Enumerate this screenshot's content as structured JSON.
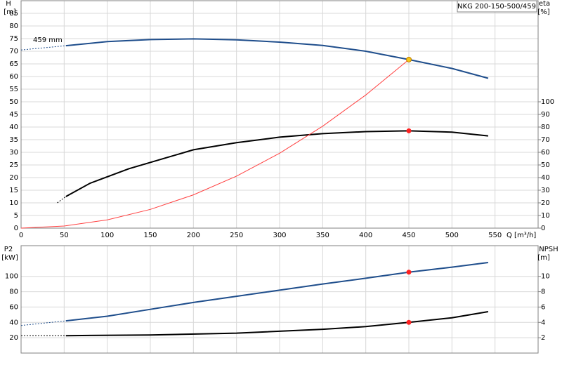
{
  "chart_data": [
    {
      "type": "line",
      "title": "NKG 200-150-500/459",
      "xlabel": "Q [m³/h]",
      "ylabel": [
        "H",
        "[m]"
      ],
      "y2label": [
        "eta",
        "[%]"
      ],
      "annotations": [
        "459 mm"
      ],
      "xlim": [
        0,
        600
      ],
      "xticks": [
        0,
        50,
        100,
        150,
        200,
        250,
        300,
        350,
        400,
        450,
        500,
        550
      ],
      "ylim": [
        0,
        90
      ],
      "yticks": [
        0,
        5,
        10,
        15,
        20,
        25,
        30,
        35,
        40,
        45,
        50,
        55,
        60,
        65,
        70,
        75,
        80,
        85
      ],
      "y2lim": [
        0,
        180
      ],
      "y2ticks": [
        0,
        10,
        20,
        30,
        40,
        50,
        60,
        70,
        80,
        90,
        100
      ],
      "grid": true,
      "series": [
        {
          "color": "#1f4e8c",
          "dashed": true,
          "x": [
            0,
            52
          ],
          "values": [
            70.5,
            72.2
          ]
        },
        {
          "color": "#1f4e8c",
          "x": [
            52,
            100,
            150,
            200,
            250,
            300,
            350,
            400,
            450,
            500,
            542
          ],
          "values": [
            72.2,
            73.8,
            74.6,
            74.9,
            74.5,
            73.6,
            72.3,
            70.0,
            66.7,
            63.2,
            59.3
          ]
        },
        {
          "color": "#000000",
          "dashed": true,
          "axis": "y2",
          "x": [
            42,
            52
          ],
          "values": [
            20,
            25
          ]
        },
        {
          "color": "#000000",
          "axis": "y2",
          "x": [
            52,
            80,
            125,
            170,
            200,
            250,
            300,
            350,
            400,
            450,
            500,
            542
          ],
          "values": [
            25,
            35.5,
            47,
            56,
            62,
            67.6,
            72,
            74.8,
            76.4,
            77,
            76,
            73
          ]
        },
        {
          "color": "#ff4040",
          "thin": true,
          "x": [
            0,
            50,
            100,
            150,
            200,
            250,
            300,
            350,
            400,
            450
          ],
          "values": [
            0,
            0.82,
            3.29,
            7.41,
            13.17,
            20.58,
            29.64,
            40.34,
            52.69,
            66.7
          ]
        }
      ],
      "markers": [
        {
          "x": 450,
          "y": 66.7,
          "color": "#f5c518"
        },
        {
          "x": 450,
          "y": 77,
          "axis": "y2",
          "color": "#ff2020"
        }
      ]
    },
    {
      "type": "line",
      "ylabel": [
        "P2",
        "[kW]"
      ],
      "y2label": [
        "NPSH",
        "[m]"
      ],
      "xlim": [
        0,
        600
      ],
      "xticks": [
        0,
        50,
        100,
        150,
        200,
        250,
        300,
        350,
        400,
        450,
        500,
        550
      ],
      "ylim": [
        0,
        140
      ],
      "yticks": [
        20,
        40,
        60,
        80,
        100
      ],
      "y2lim": [
        0,
        14
      ],
      "y2ticks": [
        2,
        4,
        6,
        8,
        10
      ],
      "grid": true,
      "series": [
        {
          "color": "#1f4e8c",
          "dashed": true,
          "x": [
            0,
            52
          ],
          "values": [
            36,
            42
          ]
        },
        {
          "color": "#1f4e8c",
          "x": [
            52,
            100,
            150,
            200,
            250,
            300,
            350,
            400,
            450,
            500,
            542
          ],
          "values": [
            42,
            48,
            57,
            66,
            74,
            82,
            90,
            97.5,
            105.5,
            112,
            118
          ]
        },
        {
          "color": "#000000",
          "dashed": true,
          "axis": "y2",
          "x": [
            0,
            52
          ],
          "values": [
            2.27,
            2.27
          ]
        },
        {
          "color": "#000000",
          "axis": "y2",
          "x": [
            52,
            150,
            250,
            350,
            400,
            450,
            500,
            542
          ],
          "values": [
            2.27,
            2.36,
            2.6,
            3.1,
            3.45,
            4.0,
            4.6,
            5.4
          ]
        }
      ],
      "markers": [
        {
          "x": 450,
          "y": 105.5,
          "color": "#ff2020"
        },
        {
          "x": 450,
          "y": 4.0,
          "axis": "y2",
          "color": "#ff2020"
        }
      ]
    }
  ]
}
